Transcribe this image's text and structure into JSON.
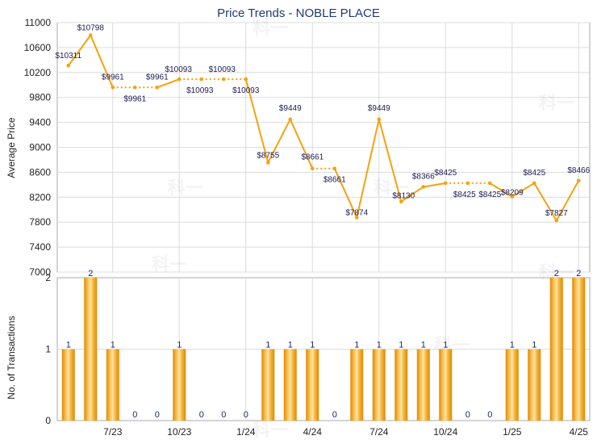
{
  "chart_data": [
    {
      "type": "line",
      "title": "Price Trends - NOBLE PLACE",
      "ylabel": "Average Price",
      "ylim": [
        7000,
        11000
      ],
      "yticks": [
        7000,
        7400,
        7800,
        8200,
        8600,
        9000,
        9400,
        9800,
        10200,
        10600,
        11000
      ],
      "points": [
        {
          "i": 0,
          "value": 10311,
          "label": "$10311"
        },
        {
          "i": 1,
          "value": 10798,
          "label": "$10798"
        },
        {
          "i": 2,
          "value": 9961,
          "label": "$9961"
        },
        {
          "i": 3,
          "value": 9961,
          "label": "$9961"
        },
        {
          "i": 4,
          "value": 9961,
          "label": "$9961"
        },
        {
          "i": 5,
          "value": 10093,
          "label": "$10093"
        },
        {
          "i": 6,
          "value": 10093,
          "label": "$10093"
        },
        {
          "i": 7,
          "value": 10093,
          "label": "$10093"
        },
        {
          "i": 8,
          "value": 10093,
          "label": "$10093"
        },
        {
          "i": 9,
          "value": 8755,
          "label": "$8755"
        },
        {
          "i": 10,
          "value": 9449,
          "label": "$9449"
        },
        {
          "i": 11,
          "value": 8661,
          "label": "$8661"
        },
        {
          "i": 12,
          "value": 8661,
          "label": "$8661"
        },
        {
          "i": 13,
          "value": 7874,
          "label": "$7874"
        },
        {
          "i": 14,
          "value": 9449,
          "label": "$9449"
        },
        {
          "i": 15,
          "value": 8130,
          "label": "$8130"
        },
        {
          "i": 16,
          "value": 8366,
          "label": "$8366"
        },
        {
          "i": 17,
          "value": 8425,
          "label": "$8425"
        },
        {
          "i": 18,
          "value": 8425,
          "label": "$8425"
        },
        {
          "i": 19,
          "value": 8425,
          "label": "$8425"
        },
        {
          "i": 20,
          "value": 8209,
          "label": "$8209"
        },
        {
          "i": 21,
          "value": 8425,
          "label": "$8425"
        },
        {
          "i": 22,
          "value": 7827,
          "label": "$7827"
        },
        {
          "i": 23,
          "value": 8466,
          "label": "$8466"
        }
      ],
      "line_color": "#f5a20f"
    },
    {
      "type": "bar",
      "ylabel": "No. of Transactions",
      "ylim": [
        0,
        2
      ],
      "yticks": [
        0,
        1,
        2
      ],
      "values": [
        1,
        2,
        1,
        0,
        0,
        1,
        0,
        0,
        0,
        1,
        1,
        1,
        0,
        1,
        1,
        1,
        1,
        1,
        0,
        0,
        1,
        1,
        2,
        2
      ],
      "bar_color": "#f5a623",
      "x_tick_labels": [
        {
          "i": 2,
          "label": "7/23"
        },
        {
          "i": 5,
          "label": "10/23"
        },
        {
          "i": 8,
          "label": "1/24"
        },
        {
          "i": 11,
          "label": "4/24"
        },
        {
          "i": 14,
          "label": "7/24"
        },
        {
          "i": 17,
          "label": "10/24"
        },
        {
          "i": 20,
          "label": "1/25"
        },
        {
          "i": 23,
          "label": "4/25"
        }
      ]
    }
  ],
  "watermark": "科一"
}
